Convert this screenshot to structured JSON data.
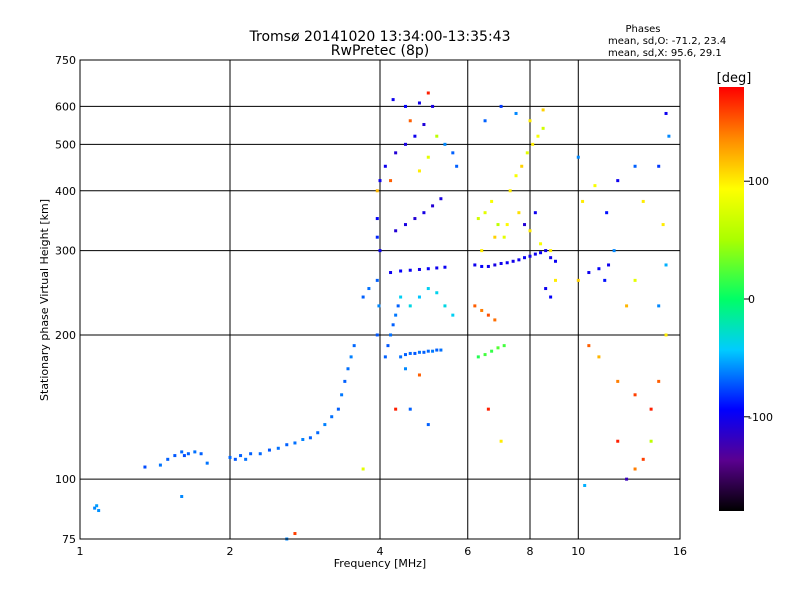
{
  "chart_data": {
    "type": "scatter",
    "title": "Tromsø 20141020 13:34:00-13:35:43",
    "subtitle": "RwPretec (8p)",
    "xlabel": "Frequency [MHz]",
    "ylabel": "Stationary phase Virtual Height [km]",
    "x_scale": "log",
    "y_scale": "log",
    "xlim": [
      1,
      16
    ],
    "ylim": [
      75,
      750
    ],
    "x_ticks": [
      1,
      2,
      4,
      6,
      8,
      10,
      16
    ],
    "x_tick_labels": [
      "1",
      "2",
      "4",
      "6",
      "8",
      "10",
      "16"
    ],
    "y_ticks": [
      75,
      100,
      200,
      300,
      400,
      500,
      600,
      750
    ],
    "y_tick_labels": [
      "75",
      "100",
      "200",
      "300",
      "400",
      "500",
      "600",
      "750"
    ],
    "grid": true,
    "stats": {
      "heading": "Phases",
      "line_o": "mean, sd,O: -71.2, 23.4",
      "line_x": "mean, sd,X:  95.6, 29.1"
    },
    "colorbar": {
      "label": "[deg]",
      "range": [
        -180,
        180
      ],
      "ticks": [
        100,
        0,
        -100
      ],
      "tick_labels": [
        "100",
        "0",
        "-100"
      ],
      "colormap": "rainbow"
    },
    "series": [
      {
        "points": [
          [
            1.07,
            87,
            -60
          ],
          [
            1.08,
            88,
            -55
          ],
          [
            1.09,
            86,
            -58
          ],
          [
            1.35,
            106,
            -75
          ],
          [
            1.45,
            107,
            -65
          ],
          [
            1.5,
            110,
            -70
          ],
          [
            1.55,
            112,
            -72
          ],
          [
            1.6,
            114,
            -68
          ],
          [
            1.62,
            112,
            -75
          ],
          [
            1.65,
            113,
            -70
          ],
          [
            1.7,
            114,
            -66
          ],
          [
            1.75,
            113,
            -70
          ],
          [
            1.8,
            108,
            -65
          ],
          [
            2.0,
            111,
            -68
          ],
          [
            2.05,
            110,
            -72
          ],
          [
            2.1,
            112,
            -70
          ],
          [
            2.15,
            110,
            -66
          ],
          [
            2.2,
            113,
            -70
          ],
          [
            2.3,
            113,
            -68
          ],
          [
            2.4,
            115,
            -72
          ],
          [
            2.5,
            116,
            -66
          ],
          [
            2.6,
            118,
            -70
          ],
          [
            2.7,
            119,
            -66
          ],
          [
            2.8,
            121,
            -62
          ],
          [
            2.9,
            122,
            -70
          ],
          [
            3.0,
            125,
            -68
          ],
          [
            3.1,
            130,
            -62
          ],
          [
            3.2,
            135,
            -66
          ],
          [
            3.3,
            140,
            -70
          ],
          [
            3.35,
            150,
            -64
          ],
          [
            3.4,
            160,
            -70
          ],
          [
            3.45,
            170,
            -66
          ],
          [
            3.5,
            180,
            -62
          ],
          [
            3.55,
            190,
            -68
          ],
          [
            3.7,
            240,
            -70
          ],
          [
            3.8,
            250,
            -66
          ],
          [
            3.95,
            200,
            -72
          ],
          [
            3.95,
            260,
            -70
          ],
          [
            3.95,
            320,
            -85
          ],
          [
            3.95,
            350,
            -95
          ],
          [
            3.95,
            400,
            120
          ],
          [
            3.98,
            230,
            -60
          ],
          [
            4.0,
            300,
            -100
          ],
          [
            4.0,
            420,
            -100
          ],
          [
            4.1,
            180,
            -70
          ],
          [
            4.15,
            190,
            -72
          ],
          [
            4.2,
            200,
            -66
          ],
          [
            4.25,
            210,
            -70
          ],
          [
            4.3,
            220,
            -64
          ],
          [
            4.35,
            230,
            -70
          ],
          [
            4.4,
            180,
            -66
          ],
          [
            4.5,
            182,
            -70
          ],
          [
            4.6,
            183,
            -68
          ],
          [
            4.7,
            183,
            -72
          ],
          [
            4.8,
            184,
            -66
          ],
          [
            4.9,
            184,
            -70
          ],
          [
            5.0,
            185,
            -68
          ],
          [
            5.1,
            185,
            -64
          ],
          [
            5.2,
            186,
            -70
          ],
          [
            5.3,
            186,
            -66
          ],
          [
            4.2,
            270,
            -100
          ],
          [
            4.4,
            272,
            -95
          ],
          [
            4.6,
            273,
            -98
          ],
          [
            4.8,
            274,
            -102
          ],
          [
            5.0,
            275,
            -95
          ],
          [
            5.2,
            276,
            -100
          ],
          [
            5.4,
            277,
            -98
          ],
          [
            4.3,
            330,
            -110
          ],
          [
            4.5,
            340,
            -105
          ],
          [
            4.7,
            350,
            -110
          ],
          [
            4.9,
            360,
            -104
          ],
          [
            5.1,
            372,
            -110
          ],
          [
            5.3,
            385,
            -106
          ],
          [
            4.1,
            450,
            -100
          ],
          [
            4.3,
            480,
            -110
          ],
          [
            4.5,
            500,
            -105
          ],
          [
            4.7,
            520,
            -100
          ],
          [
            4.9,
            550,
            -108
          ],
          [
            5.1,
            600,
            -105
          ],
          [
            4.2,
            420,
            150
          ],
          [
            4.6,
            560,
            150
          ],
          [
            4.8,
            440,
            100
          ],
          [
            5.0,
            470,
            80
          ],
          [
            5.2,
            520,
            60
          ],
          [
            5.4,
            500,
            -60
          ],
          [
            5.6,
            480,
            -70
          ],
          [
            5.7,
            450,
            -70
          ],
          [
            4.25,
            620,
            -100
          ],
          [
            4.5,
            600,
            -95
          ],
          [
            4.8,
            610,
            -102
          ],
          [
            5.0,
            640,
            170
          ],
          [
            4.4,
            240,
            -40
          ],
          [
            4.6,
            230,
            -35
          ],
          [
            4.8,
            240,
            -45
          ],
          [
            5.0,
            250,
            -40
          ],
          [
            5.2,
            245,
            -38
          ],
          [
            5.4,
            230,
            -35
          ],
          [
            5.6,
            220,
            -40
          ],
          [
            4.6,
            140,
            -70
          ],
          [
            5.0,
            130,
            -70
          ],
          [
            4.8,
            165,
            150
          ],
          [
            4.5,
            170,
            -60
          ],
          [
            4.3,
            140,
            170
          ],
          [
            6.2,
            280,
            -100
          ],
          [
            6.4,
            278,
            -95
          ],
          [
            6.6,
            278,
            -100
          ],
          [
            6.8,
            280,
            -104
          ],
          [
            7.0,
            282,
            -100
          ],
          [
            7.2,
            283,
            -98
          ],
          [
            7.4,
            285,
            -102
          ],
          [
            7.6,
            287,
            -100
          ],
          [
            7.8,
            290,
            -98
          ],
          [
            8.0,
            292,
            -102
          ],
          [
            8.2,
            295,
            -100
          ],
          [
            8.4,
            297,
            -98
          ],
          [
            8.6,
            300,
            -102
          ],
          [
            8.8,
            290,
            -100
          ],
          [
            9.0,
            285,
            -98
          ],
          [
            6.2,
            230,
            150
          ],
          [
            6.4,
            225,
            140
          ],
          [
            6.6,
            220,
            155
          ],
          [
            6.8,
            215,
            145
          ],
          [
            6.3,
            180,
            10
          ],
          [
            6.5,
            182,
            20
          ],
          [
            6.7,
            185,
            15
          ],
          [
            6.9,
            188,
            25
          ],
          [
            7.1,
            190,
            20
          ],
          [
            6.3,
            350,
            70
          ],
          [
            6.5,
            360,
            80
          ],
          [
            6.7,
            380,
            90
          ],
          [
            6.9,
            340,
            60
          ],
          [
            7.1,
            320,
            80
          ],
          [
            7.3,
            400,
            100
          ],
          [
            7.5,
            430,
            90
          ],
          [
            7.7,
            450,
            110
          ],
          [
            7.9,
            480,
            80
          ],
          [
            8.1,
            500,
            100
          ],
          [
            8.3,
            520,
            90
          ],
          [
            8.5,
            540,
            70
          ],
          [
            6.4,
            300,
            100
          ],
          [
            6.8,
            320,
            110
          ],
          [
            7.2,
            340,
            95
          ],
          [
            7.6,
            360,
            105
          ],
          [
            8.0,
            330,
            100
          ],
          [
            8.4,
            310,
            90
          ],
          [
            8.8,
            300,
            100
          ],
          [
            9.0,
            260,
            100
          ],
          [
            6.5,
            560,
            -70
          ],
          [
            7.0,
            600,
            -80
          ],
          [
            7.5,
            580,
            -60
          ],
          [
            8.0,
            560,
            100
          ],
          [
            8.5,
            590,
            110
          ],
          [
            6.6,
            140,
            170
          ],
          [
            7.0,
            120,
            100
          ],
          [
            7.8,
            340,
            -110
          ],
          [
            8.2,
            360,
            -100
          ],
          [
            8.6,
            250,
            -100
          ],
          [
            8.8,
            240,
            -95
          ],
          [
            10.0,
            260,
            110
          ],
          [
            10.5,
            270,
            -100
          ],
          [
            11.0,
            275,
            -95
          ],
          [
            11.5,
            280,
            -100
          ],
          [
            11.3,
            260,
            -90
          ],
          [
            10.2,
            380,
            100
          ],
          [
            10.8,
            410,
            90
          ],
          [
            11.4,
            360,
            -90
          ],
          [
            10.0,
            470,
            -60
          ],
          [
            12.0,
            420,
            -100
          ],
          [
            13.0,
            450,
            -70
          ],
          [
            13.5,
            380,
            100
          ],
          [
            11.8,
            300,
            -60
          ],
          [
            12.5,
            230,
            120
          ],
          [
            13.0,
            260,
            80
          ],
          [
            10.5,
            190,
            150
          ],
          [
            11.0,
            180,
            120
          ],
          [
            12.0,
            160,
            140
          ],
          [
            13.0,
            150,
            160
          ],
          [
            14.0,
            140,
            170
          ],
          [
            12.5,
            100,
            -120
          ],
          [
            13.0,
            105,
            140
          ],
          [
            13.5,
            110,
            160
          ],
          [
            12.0,
            120,
            170
          ],
          [
            14.0,
            120,
            60
          ],
          [
            14.5,
            160,
            150
          ],
          [
            15.0,
            200,
            100
          ],
          [
            14.5,
            230,
            -60
          ],
          [
            15.0,
            280,
            -50
          ],
          [
            14.8,
            340,
            100
          ],
          [
            14.5,
            450,
            -80
          ],
          [
            15.0,
            580,
            -100
          ],
          [
            15.2,
            520,
            -60
          ],
          [
            10.3,
            97,
            -50
          ],
          [
            1.6,
            92,
            -60
          ],
          [
            2.7,
            77,
            160
          ],
          [
            2.6,
            75,
            -60
          ],
          [
            3.7,
            105,
            80
          ]
        ]
      }
    ]
  }
}
